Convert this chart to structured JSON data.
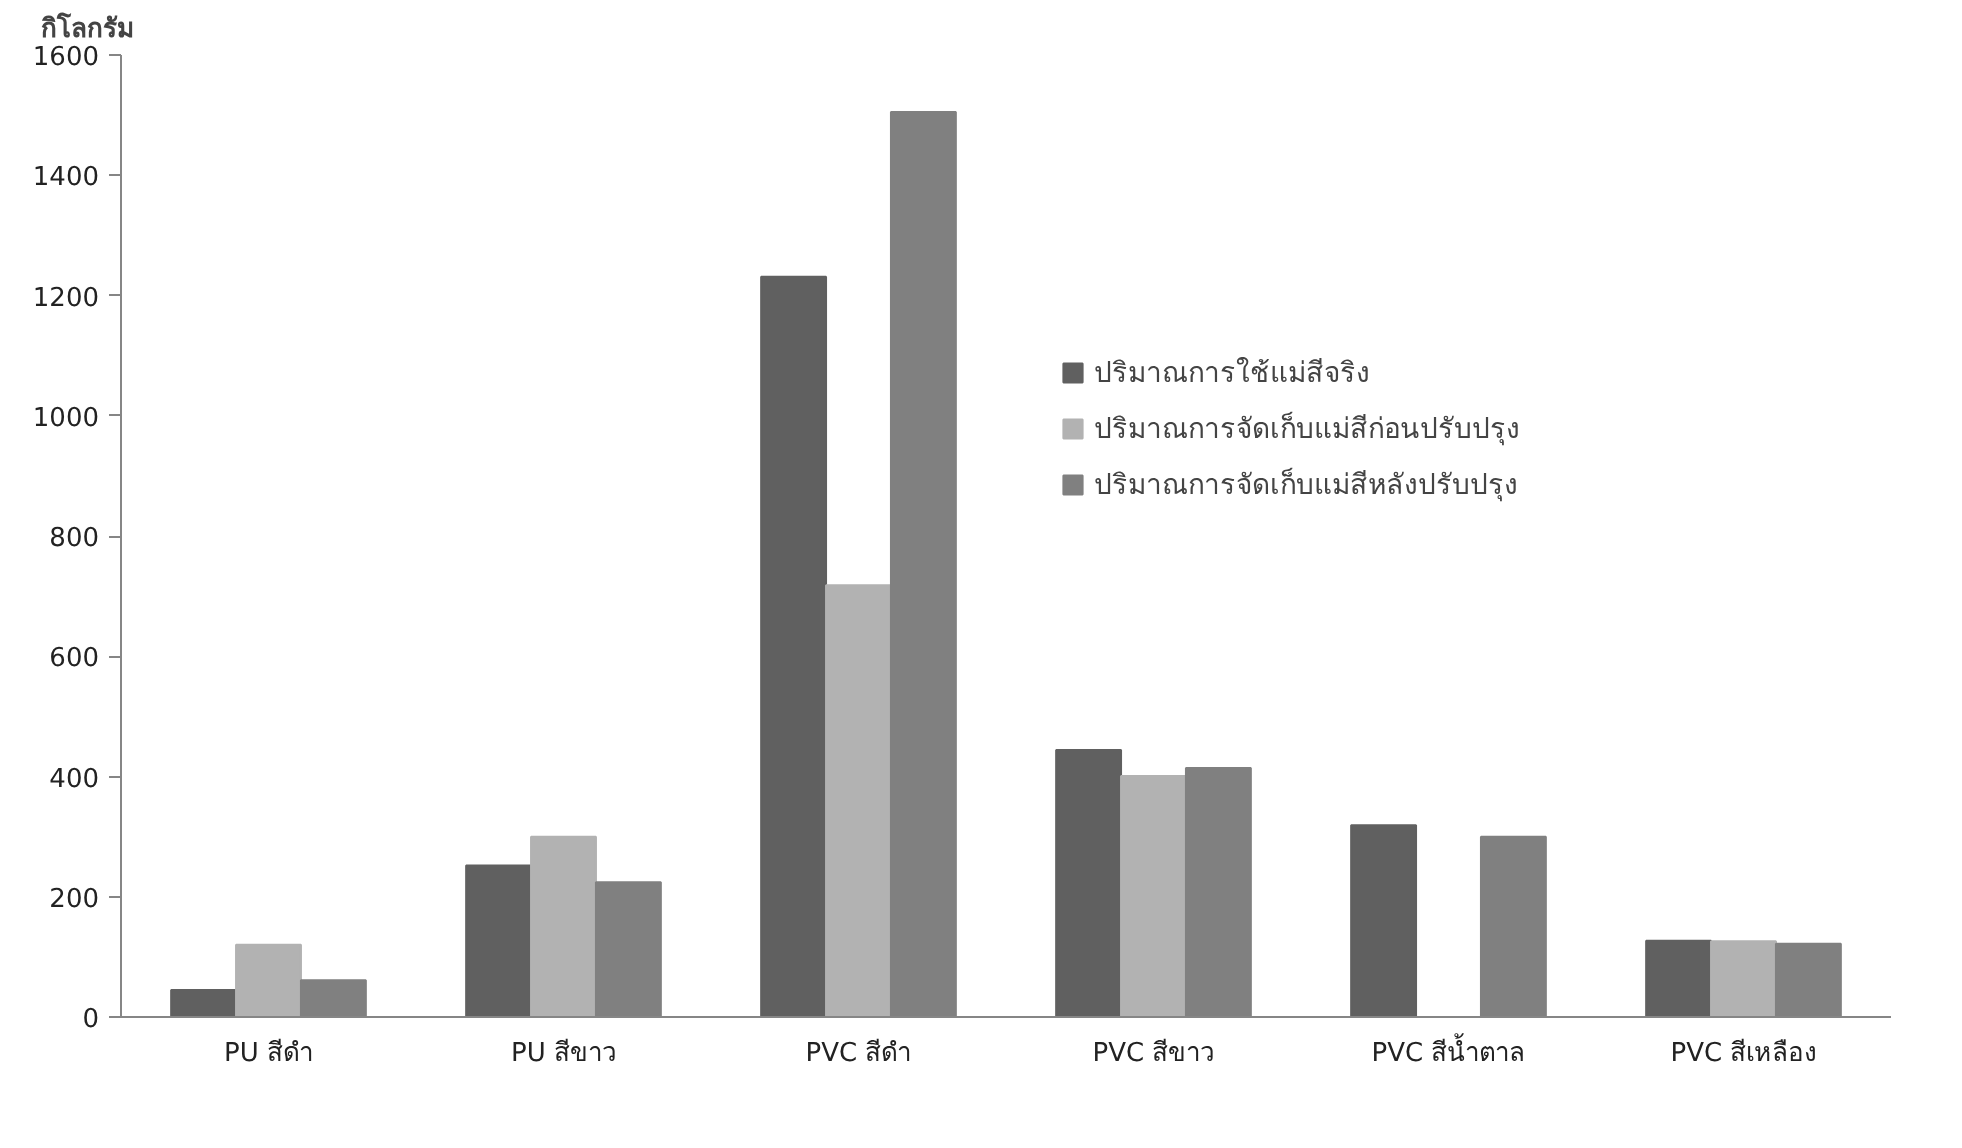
{
  "chart_data": {
    "type": "bar",
    "ylabel": "กิโลกรัม",
    "categories": [
      "PU สีดำ",
      "PU สีขาว",
      "PVC สีดำ",
      "PVC สีขาว",
      "PVC สีน้ำตาล",
      "PVC สีเหลือง"
    ],
    "series": [
      {
        "name": "ปริมาณการใช้แม่สีจริง",
        "color": "#606060",
        "values": [
          45,
          252,
          1231,
          444,
          319,
          127
        ]
      },
      {
        "name": "ปริมาณการจัดเก็บแม่สีก่อนปรับปรุง",
        "color": "#b2b2b2",
        "values": [
          120,
          300,
          718,
          401,
          null,
          126
        ]
      },
      {
        "name": "ปริมาณการจัดเก็บแม่สีหลังปรับปรุง",
        "color": "#808080",
        "values": [
          61,
          224,
          1505,
          414,
          300,
          122
        ]
      }
    ],
    "ylim": [
      0,
      1600
    ],
    "yticks": [
      0,
      200,
      400,
      600,
      800,
      1000,
      1200,
      1400,
      1600
    ],
    "grid": false,
    "legend": "right"
  }
}
